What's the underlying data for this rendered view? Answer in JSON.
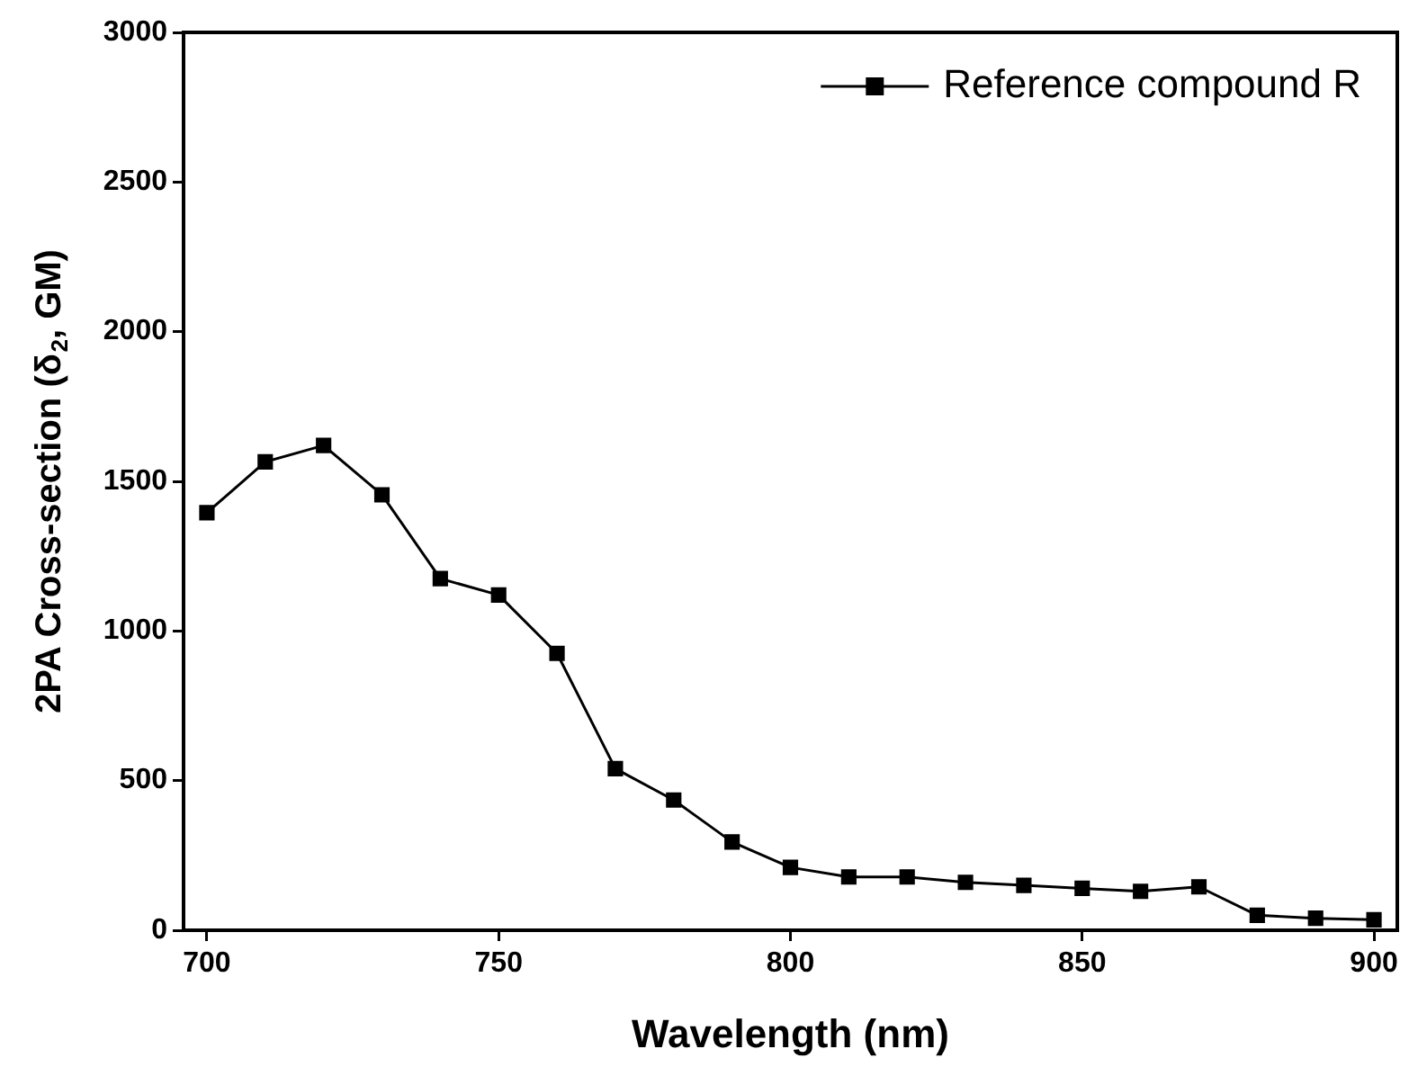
{
  "chart_data": {
    "type": "line",
    "xlabel": "Wavelength (nm)",
    "ylabel": "2PA Cross-section (δ$_{2}$, GM)",
    "x": [
      700,
      710,
      720,
      730,
      740,
      750,
      760,
      770,
      780,
      790,
      800,
      810,
      820,
      830,
      840,
      850,
      860,
      870,
      880,
      890,
      900
    ],
    "series": [
      {
        "name": "Reference compound R",
        "color": "#000000",
        "values": [
          1395,
          1565,
          1620,
          1455,
          1175,
          1120,
          925,
          540,
          435,
          295,
          210,
          178,
          178,
          160,
          150,
          140,
          130,
          145,
          50,
          40,
          35
        ]
      }
    ],
    "xlim": [
      696,
      904
    ],
    "xticks": [
      700,
      750,
      800,
      850,
      900
    ],
    "ylim": [
      0,
      3000
    ],
    "yticks": [
      0,
      500,
      1000,
      1500,
      2000,
      2500,
      3000
    ],
    "grid": false,
    "legend": "top right",
    "marker": "square",
    "line_style": "solid"
  }
}
